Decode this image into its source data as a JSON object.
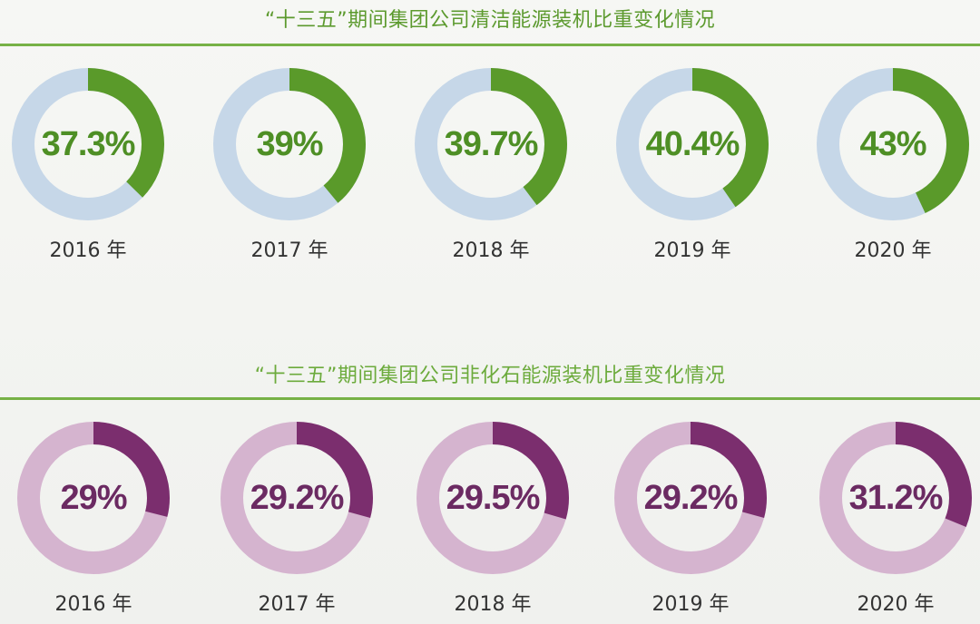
{
  "chart_data": [
    {
      "type": "pie",
      "title": "“十三五”期间集团公司清洁能源装机比重变化情况",
      "categories": [
        "2016 年",
        "2017 年",
        "2018 年",
        "2019 年",
        "2020 年"
      ],
      "values": [
        37.3,
        39,
        39.7,
        40.4,
        43
      ],
      "value_labels": [
        "37.3%",
        "39%",
        "39.7%",
        "40.4%",
        "43%"
      ],
      "unit": "%",
      "ylim": [
        0,
        100
      ],
      "colors": {
        "filled": "#5a9a2a",
        "remaining": "#c6d7e8",
        "value_text": "#4e8f25"
      }
    },
    {
      "type": "pie",
      "title": "“十三五”期间集团公司非化石能源装机比重变化情况",
      "categories": [
        "2016 年",
        "2017 年",
        "2018 年",
        "2019 年",
        "2020 年"
      ],
      "values": [
        29,
        29.2,
        29.5,
        29.2,
        31.2
      ],
      "value_labels": [
        "29%",
        "29.2%",
        "29.5%",
        "29.2%",
        "31.2%"
      ],
      "unit": "%",
      "ylim": [
        0,
        100
      ],
      "colors": {
        "filled": "#7b2e6e",
        "remaining": "#d5b4cf",
        "value_text": "#6b2a62"
      }
    }
  ]
}
